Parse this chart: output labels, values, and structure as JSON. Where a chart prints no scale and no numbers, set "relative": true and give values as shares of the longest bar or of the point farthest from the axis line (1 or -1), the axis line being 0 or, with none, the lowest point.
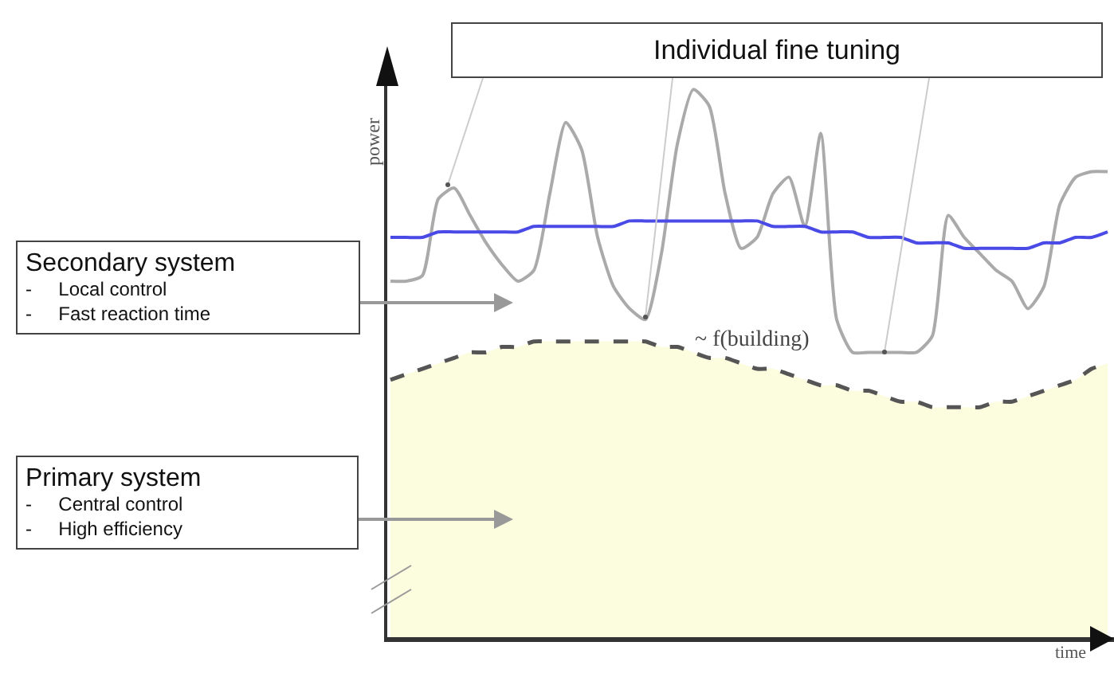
{
  "chart_data": {
    "type": "line",
    "relative": true,
    "grid": false,
    "tick_labels": false,
    "marker": "none",
    "xlabel": "time",
    "ylabel": "power",
    "categories": [
      null,
      null,
      null,
      null,
      null,
      null,
      null,
      null,
      null,
      null,
      null,
      null,
      null,
      null,
      null,
      null,
      null,
      null,
      null,
      null,
      null,
      null,
      null,
      null,
      null,
      null,
      null,
      null,
      null,
      null,
      null,
      null,
      null,
      null,
      null,
      null,
      null,
      null,
      null,
      null,
      null,
      null,
      null,
      null,
      null,
      null
    ],
    "series": [
      {
        "type": "area",
        "line_style": "dashed",
        "color": "#fcfcdf",
        "values": [
          0.47,
          0.48,
          0.49,
          0.5,
          0.51,
          0.52,
          0.52,
          0.53,
          0.53,
          0.54,
          0.54,
          0.54,
          0.54,
          0.54,
          0.54,
          0.54,
          0.54,
          0.53,
          0.53,
          0.52,
          0.51,
          0.51,
          0.5,
          0.49,
          0.49,
          0.48,
          0.47,
          0.46,
          0.46,
          0.45,
          0.45,
          0.44,
          0.43,
          0.43,
          0.42,
          0.42,
          0.42,
          0.42,
          0.43,
          0.43,
          0.44,
          0.45,
          0.46,
          0.47,
          0.49,
          0.5
        ]
      },
      {
        "type": "line",
        "line_style": "solid",
        "color": "#aaaaaa",
        "values": [
          0.65,
          0.65,
          0.66,
          0.8,
          0.82,
          0.77,
          0.72,
          0.68,
          0.65,
          0.67,
          0.81,
          0.94,
          0.89,
          0.73,
          0.64,
          0.6,
          0.58,
          0.7,
          0.9,
          1.0,
          0.97,
          0.81,
          0.71,
          0.73,
          0.81,
          0.84,
          0.75,
          0.92,
          0.58,
          0.52,
          0.52,
          0.52,
          0.52,
          0.52,
          0.55,
          0.77,
          0.73,
          0.7,
          0.67,
          0.65,
          0.6,
          0.64,
          0.79,
          0.84,
          0.85,
          0.85
        ]
      },
      {
        "type": "line",
        "line_style": "solid",
        "color": "#4a4ae6",
        "values": [
          0.73,
          0.73,
          0.73,
          0.74,
          0.74,
          0.74,
          0.74,
          0.74,
          0.74,
          0.75,
          0.75,
          0.75,
          0.75,
          0.75,
          0.75,
          0.76,
          0.76,
          0.76,
          0.76,
          0.76,
          0.76,
          0.76,
          0.76,
          0.76,
          0.75,
          0.75,
          0.75,
          0.74,
          0.74,
          0.74,
          0.73,
          0.73,
          0.73,
          0.72,
          0.72,
          0.72,
          0.71,
          0.71,
          0.71,
          0.71,
          0.71,
          0.72,
          0.72,
          0.73,
          0.73,
          0.74
        ]
      }
    ],
    "annotations": [
      "Individual fine tuning",
      "Secondary system\n- Local control\n- Fast reaction time",
      "Primary system\n- Central control\n- High efficiency",
      "~ f(building)"
    ]
  }
}
